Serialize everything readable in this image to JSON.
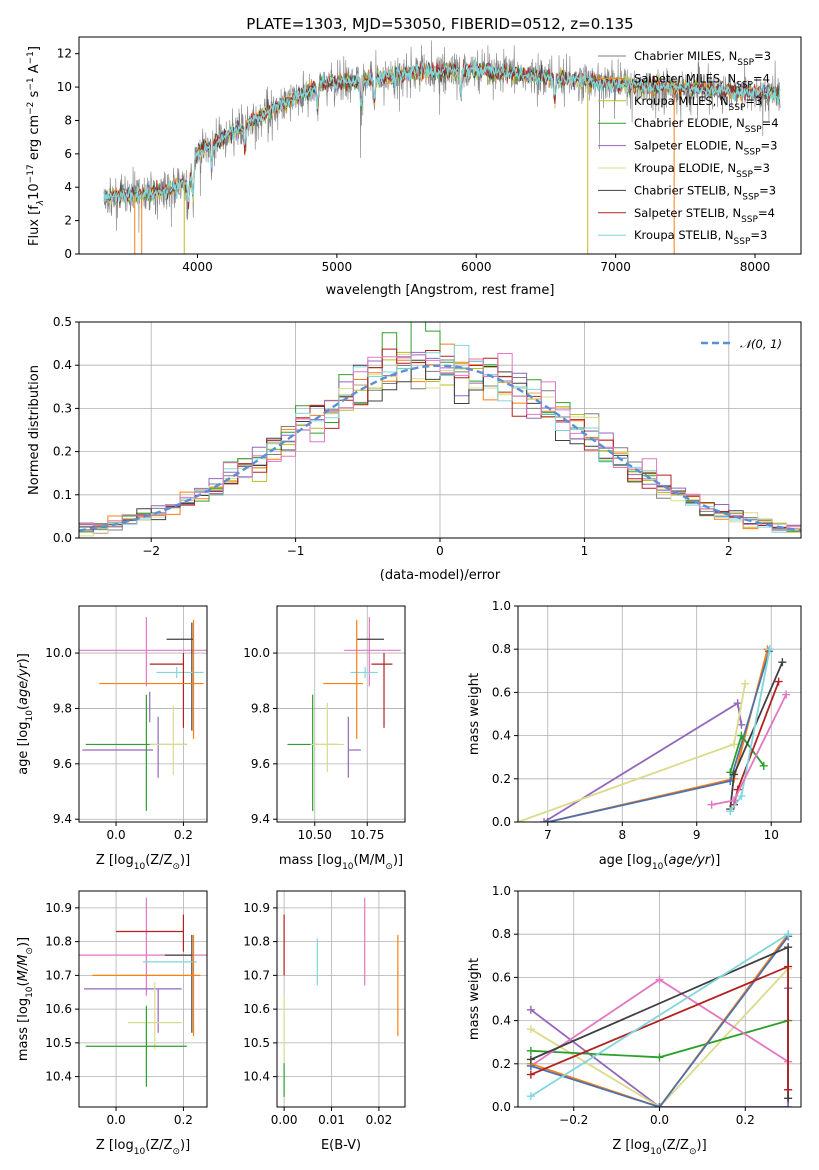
{
  "colors": {
    "chabrier_miles": "#7f7f7f",
    "salpeter_miles": "#ff7f0e",
    "kroupa_miles": "#bcbd22",
    "chabrier_elodie": "#2ca02c",
    "salpeter_elodie": "#9467bd",
    "kroupa_elodie": "#dbdb8d",
    "chabrier_stelib": "#404040",
    "salpeter_stelib": "#b22222",
    "kroupa_stelib": "#7fd7dc",
    "pink": "#e377c2",
    "blue": "#4c72b0",
    "gauss": "#5b8fd6"
  },
  "chart_data": [
    {
      "id": "spectrum",
      "type": "line",
      "title": "PLATE=1303, MJD=53050, FIBERID=0512, z=0.135",
      "xlabel": "wavelength [Angstrom, rest frame]",
      "ylabel": "Flux [f",
      "ylabel_sub": "λ",
      "ylabel_rest": "10",
      "ylabel_exp": "−17",
      "ylabel_units": " erg cm",
      "ylabel_units_exp": "−2",
      "ylabel_units2": " s",
      "ylabel_units2_exp": "−1",
      "ylabel_units3": " A",
      "ylabel_units3_exp": "−1",
      "ylabel_close": "]",
      "xlim": [
        3150,
        8330
      ],
      "ylim": [
        0,
        13
      ],
      "xticks": [
        4000,
        5000,
        6000,
        7000,
        8000
      ],
      "yticks": [
        0,
        2,
        4,
        6,
        8,
        10,
        12
      ],
      "x_range": [
        3330,
        8180
      ],
      "continuum": [
        [
          3330,
          3.4
        ],
        [
          3650,
          3.6
        ],
        [
          3800,
          3.9
        ],
        [
          3950,
          4.4
        ],
        [
          4000,
          6.1
        ],
        [
          4300,
          7.5
        ],
        [
          4600,
          9.0
        ],
        [
          4900,
          10.2
        ],
        [
          5200,
          10.4
        ],
        [
          5600,
          10.9
        ],
        [
          6000,
          11.0
        ],
        [
          6500,
          10.6
        ],
        [
          7000,
          10.2
        ],
        [
          7500,
          9.9
        ],
        [
          8180,
          9.6
        ]
      ],
      "legend": [
        {
          "name": "Chabrier MILES, N",
          "sub": "SSP",
          "val": "=3"
        },
        {
          "name": "Salpeter MILES, N",
          "sub": "SSP",
          "val": "=4"
        },
        {
          "name": "Kroupa MILES, N",
          "sub": "SSP",
          "val": "=3"
        },
        {
          "name": "Chabrier ELODIE, N",
          "sub": "SSP",
          "val": "=4"
        },
        {
          "name": "Salpeter ELODIE, N",
          "sub": "SSP",
          "val": "=3"
        },
        {
          "name": "Kroupa ELODIE, N",
          "sub": "SSP",
          "val": "=3"
        },
        {
          "name": "Chabrier STELIB, N",
          "sub": "SSP",
          "val": "=3"
        },
        {
          "name": "Salpeter STELIB, N",
          "sub": "SSP",
          "val": "=4"
        },
        {
          "name": "Kroupa STELIB, N",
          "sub": "SSP",
          "val": "=3"
        }
      ],
      "legend_placement": "upper-right"
    },
    {
      "id": "residuals",
      "type": "histogram",
      "xlabel": "(data-model)/error",
      "ylabel": "Normed distribution",
      "xlim": [
        -2.5,
        2.5
      ],
      "ylim": [
        0,
        0.5
      ],
      "xticks": [
        -2,
        -1,
        0,
        1,
        2
      ],
      "xtick_labels": [
        "−2",
        "−1",
        "0",
        "1",
        "2"
      ],
      "yticks": [
        0.0,
        0.1,
        0.2,
        0.3,
        0.4,
        0.5
      ],
      "bin_width": 0.1,
      "grid": true,
      "legend": [
        {
          "name": "𝒩(0, 1)"
        }
      ],
      "legend_placement": "upper-right"
    },
    {
      "id": "age-vs-Z",
      "type": "errorbar",
      "xlabel": "Z [log",
      "xlabel_sub": "10",
      "xlabel_rest": "(Z/Z",
      "xlabel_sub2": "⊙",
      "xlabel_close": ")]",
      "ylabel": "age  [log",
      "ylabel_sub": "10",
      "ylabel_rest": "(age/yr)]",
      "xlim": [
        -0.11,
        0.27
      ],
      "ylim": [
        9.39,
        10.17
      ],
      "xticks": [
        0.0,
        0.2
      ],
      "yticks": [
        9.4,
        9.6,
        9.8,
        10.0
      ],
      "grid": true,
      "points": [
        {
          "series": "pink",
          "x": 0.09,
          "xerr": [
            0.2,
            0.21
          ],
          "y": 10.01,
          "yerr": [
            0.13,
            0.12
          ]
        },
        {
          "series": "chabrier_stelib",
          "x": 0.23,
          "xerr": [
            0.08,
            0.0
          ],
          "y": 10.05,
          "yerr": [
            0.0,
            0.0
          ]
        },
        {
          "series": "chabrier_stelib",
          "x": 0.225,
          "xerr": [
            0.0,
            0.0
          ],
          "y": 9.93,
          "yerr": [
            0.21,
            0.18
          ]
        },
        {
          "series": "kroupa_stelib",
          "x": 0.18,
          "xerr": [
            0.06,
            0.08
          ],
          "y": 9.93,
          "yerr": [
            0.02,
            0.02
          ]
        },
        {
          "series": "salpeter_stelib",
          "x": 0.2,
          "xerr": [
            0.1,
            0.0
          ],
          "y": 9.96,
          "yerr": [
            0.23,
            0.04
          ]
        },
        {
          "series": "salpeter_miles",
          "x": 0.23,
          "xerr": [
            0.28,
            0.03
          ],
          "y": 9.89,
          "yerr": [
            0.2,
            0.23
          ]
        },
        {
          "series": "salpeter_elodie",
          "x": 0.1,
          "xerr": [
            0.2,
            0.01
          ],
          "y": 9.65,
          "yerr": [
            0.0,
            0.0
          ]
        },
        {
          "series": "salpeter_elodie",
          "x": 0.1,
          "xerr": [
            0.0,
            0.0
          ],
          "y": 9.75,
          "yerr": [
            0.0,
            0.11
          ]
        },
        {
          "series": "salpeter_elodie",
          "x": 0.125,
          "xerr": [
            0.0,
            0.0
          ],
          "y": 9.65,
          "yerr": [
            0.1,
            0.12
          ]
        },
        {
          "series": "chabrier_elodie",
          "x": 0.09,
          "xerr": [
            0.18,
            0.12
          ],
          "y": 9.67,
          "yerr": [
            0.24,
            0.18
          ]
        },
        {
          "series": "kroupa_elodie",
          "x": 0.17,
          "xerr": [
            0.0,
            0.0
          ],
          "y": 9.66,
          "yerr": [
            0.1,
            0.15
          ]
        },
        {
          "series": "kroupa_elodie",
          "x": 0.17,
          "xerr": [
            0.07,
            0.04
          ],
          "y": 9.67,
          "yerr": [
            0.0,
            0.0
          ]
        }
      ]
    },
    {
      "id": "age-vs-mass",
      "type": "errorbar",
      "xlabel": "mass [log",
      "xlabel_sub": "10",
      "xlabel_rest": "(M/M",
      "xlabel_sub2": "⊙",
      "xlabel_close": ")]",
      "xlim": [
        10.32,
        10.93
      ],
      "ylim": [
        9.39,
        10.17
      ],
      "xticks": [
        10.5,
        10.75
      ],
      "xtick_labels": [
        "10.50",
        "10.75"
      ],
      "yticks": [
        9.4,
        9.6,
        9.8,
        10.0
      ],
      "grid": true,
      "points": [
        {
          "series": "pink",
          "x": 10.76,
          "xerr": [
            0.12,
            0.15
          ],
          "y": 10.01,
          "yerr": [
            0.13,
            0.12
          ]
        },
        {
          "series": "chabrier_stelib",
          "x": 10.76,
          "xerr": [
            0.06,
            0.07
          ],
          "y": 10.05,
          "yerr": [
            0.0,
            0.0
          ]
        },
        {
          "series": "kroupa_stelib",
          "x": 10.74,
          "xerr": [
            0.07,
            0.06
          ],
          "y": 9.93,
          "yerr": [
            0.02,
            0.02
          ]
        },
        {
          "series": "salpeter_stelib",
          "x": 10.83,
          "xerr": [
            0.06,
            0.04
          ],
          "y": 9.96,
          "yerr": [
            0.23,
            0.04
          ]
        },
        {
          "series": "salpeter_miles",
          "x": 10.7,
          "xerr": [
            0.16,
            0.03
          ],
          "y": 9.89,
          "yerr": [
            0.2,
            0.23
          ]
        },
        {
          "series": "salpeter_elodie",
          "x": 10.66,
          "xerr": [
            0.0,
            0.06
          ],
          "y": 9.65,
          "yerr": [
            0.1,
            0.12
          ]
        },
        {
          "series": "chabrier_elodie",
          "x": 10.49,
          "xerr": [
            0.12,
            0.12
          ],
          "y": 9.67,
          "yerr": [
            0.24,
            0.18
          ]
        },
        {
          "series": "kroupa_elodie",
          "x": 10.56,
          "xerr": [
            0.08,
            0.08
          ],
          "y": 9.67,
          "yerr": [
            0.1,
            0.15
          ]
        }
      ]
    },
    {
      "id": "mass-weight-vs-age",
      "type": "line",
      "xlabel": "age  [log",
      "xlabel_sub": "10",
      "xlabel_rest": "(age/yr)]",
      "ylabel": "mass weight",
      "xlim": [
        6.6,
        10.4
      ],
      "ylim": [
        0,
        1.0
      ],
      "xticks": [
        7,
        8,
        9,
        10
      ],
      "yticks": [
        0.0,
        0.2,
        0.4,
        0.6,
        0.8,
        1.0
      ],
      "grid": true,
      "series": [
        {
          "name": "salpeter_elodie",
          "x": [
            6.95,
            9.55,
            9.6
          ],
          "y": [
            0.0,
            0.55,
            0.45
          ]
        },
        {
          "name": "kroupa_elodie",
          "x": [
            6.6,
            9.5,
            9.65
          ],
          "y": [
            0.0,
            0.36,
            0.64
          ]
        },
        {
          "name": "salpeter_miles",
          "x": [
            7.0,
            9.5,
            9.95
          ],
          "y": [
            0.0,
            0.2,
            0.8
          ]
        },
        {
          "name": "blue",
          "x": [
            7.0,
            9.45,
            9.97
          ],
          "y": [
            0.0,
            0.19,
            0.79
          ]
        },
        {
          "name": "chabrier_elodie",
          "x": [
            9.45,
            9.6,
            9.9
          ],
          "y": [
            0.23,
            0.4,
            0.26
          ]
        },
        {
          "name": "chabrier_stelib",
          "x": [
            9.45,
            9.5,
            10.15
          ],
          "y": [
            0.06,
            0.22,
            0.74
          ]
        },
        {
          "name": "salpeter_stelib",
          "x": [
            9.5,
            9.55,
            10.1
          ],
          "y": [
            0.08,
            0.15,
            0.65
          ]
        },
        {
          "name": "kroupa_stelib",
          "x": [
            9.45,
            9.6,
            9.98
          ],
          "y": [
            0.05,
            0.12,
            0.8
          ]
        },
        {
          "name": "pink",
          "x": [
            9.2,
            9.5,
            10.2
          ],
          "y": [
            0.08,
            0.1,
            0.59
          ]
        }
      ]
    },
    {
      "id": "mass-vs-Z",
      "type": "errorbar",
      "xlabel": "Z [log",
      "xlabel_sub": "10",
      "xlabel_rest": "(Z/Z",
      "xlabel_sub2": "⊙",
      "xlabel_close": ")]",
      "ylabel": "mass [log",
      "ylabel_sub": "10",
      "ylabel_rest": "(M/M",
      "ylabel_sub2": "⊙",
      "ylabel_close": ")]",
      "xlim": [
        -0.11,
        0.27
      ],
      "ylim": [
        10.31,
        10.95
      ],
      "xticks": [
        0.0,
        0.2
      ],
      "yticks": [
        10.4,
        10.5,
        10.6,
        10.7,
        10.8,
        10.9
      ],
      "grid": true,
      "points": [
        {
          "series": "pink",
          "x": 0.09,
          "xerr": [
            0.2,
            0.21
          ],
          "y": 10.76,
          "yerr": [
            0.12,
            0.17
          ]
        },
        {
          "series": "salpeter_stelib",
          "x": 0.2,
          "xerr": [
            0.2,
            0.0
          ],
          "y": 10.83,
          "yerr": [
            0.06,
            0.05
          ]
        },
        {
          "series": "chabrier_stelib",
          "x": 0.225,
          "xerr": [
            0.08,
            0.0
          ],
          "y": 10.76,
          "yerr": [
            0.23,
            0.06
          ]
        },
        {
          "series": "kroupa_stelib",
          "x": 0.16,
          "xerr": [
            0.08,
            0.08
          ],
          "y": 10.74,
          "yerr": [
            0.0,
            0.0
          ]
        },
        {
          "series": "salpeter_miles",
          "x": 0.23,
          "xerr": [
            0.3,
            0.02
          ],
          "y": 10.7,
          "yerr": [
            0.18,
            0.12
          ]
        },
        {
          "series": "salpeter_elodie",
          "x": 0.125,
          "xerr": [
            0.22,
            0.07
          ],
          "y": 10.66,
          "yerr": [
            0.13,
            0.0
          ]
        },
        {
          "series": "kroupa_elodie",
          "x": 0.115,
          "xerr": [
            0.08,
            0.08
          ],
          "y": 10.56,
          "yerr": [
            0.08,
            0.12
          ]
        },
        {
          "series": "chabrier_elodie",
          "x": 0.09,
          "xerr": [
            0.18,
            0.12
          ],
          "y": 10.49,
          "yerr": [
            0.12,
            0.12
          ]
        }
      ]
    },
    {
      "id": "mass-vs-ebv",
      "type": "errorbar",
      "xlabel": "E(B-V)",
      "xlim": [
        -0.0015,
        0.0255
      ],
      "ylim": [
        10.31,
        10.95
      ],
      "xticks": [
        0.0,
        0.01,
        0.02
      ],
      "xtick_labels": [
        "0.00",
        "0.01",
        "0.02"
      ],
      "yticks": [
        10.4,
        10.5,
        10.6,
        10.7,
        10.8,
        10.9
      ],
      "grid": true,
      "points": [
        {
          "series": "salpeter_stelib",
          "x": 0.0,
          "y": 10.83,
          "yerr": [
            0.13,
            0.05
          ]
        },
        {
          "series": "kroupa_elodie",
          "x": 0.0,
          "y": 10.56,
          "yerr": [
            0.11,
            0.08
          ]
        },
        {
          "series": "chabrier_elodie",
          "x": 0.0,
          "y": 10.39,
          "yerr": [
            0.05,
            0.05
          ]
        },
        {
          "series": "kroupa_stelib",
          "x": 0.007,
          "y": 10.74,
          "yerr": [
            0.07,
            0.07
          ]
        },
        {
          "series": "pink",
          "x": 0.017,
          "y": 10.81,
          "yerr": [
            0.14,
            0.12
          ]
        },
        {
          "series": "salpeter_miles",
          "x": 0.024,
          "y": 10.67,
          "yerr": [
            0.15,
            0.15
          ]
        }
      ]
    },
    {
      "id": "mass-weight-vs-Z",
      "type": "line",
      "xlabel": "Z [log",
      "xlabel_sub": "10",
      "xlabel_rest": "(Z/Z",
      "xlabel_sub2": "⊙",
      "xlabel_close": ")]",
      "ylabel": "mass weight",
      "xlim": [
        -0.33,
        0.33
      ],
      "ylim": [
        0,
        1.0
      ],
      "xticks": [
        -0.2,
        0.0,
        0.2
      ],
      "xtick_labels": [
        "−0.2",
        "0.0",
        "0.2"
      ],
      "yticks": [
        0.0,
        0.2,
        0.4,
        0.6,
        0.8,
        1.0
      ],
      "grid": true,
      "series": [
        {
          "name": "salpeter_elodie",
          "x": [
            -0.3,
            0.0,
            0.3,
            0.3
          ],
          "y": [
            0.45,
            0.0,
            0.0,
            0.55
          ]
        },
        {
          "name": "kroupa_elodie",
          "x": [
            -0.3,
            0.0,
            0.3
          ],
          "y": [
            0.36,
            0.0,
            0.64
          ]
        },
        {
          "name": "chabrier_elodie",
          "x": [
            -0.3,
            0.0,
            0.3
          ],
          "y": [
            0.26,
            0.23,
            0.4
          ]
        },
        {
          "name": "pink",
          "x": [
            -0.3,
            0.0,
            0.3,
            0.3
          ],
          "y": [
            0.19,
            0.59,
            0.21,
            0.08
          ]
        },
        {
          "name": "salpeter_miles",
          "x": [
            -0.3,
            0.0,
            0.3
          ],
          "y": [
            0.2,
            0.0,
            0.8
          ]
        },
        {
          "name": "blue",
          "x": [
            -0.3,
            0.0,
            0.3
          ],
          "y": [
            0.19,
            0.0,
            0.79
          ]
        },
        {
          "name": "chabrier_stelib",
          "x": [
            -0.3,
            0.3,
            0.3
          ],
          "y": [
            0.22,
            0.74,
            0.04
          ]
        },
        {
          "name": "salpeter_stelib",
          "x": [
            -0.3,
            0.3,
            0.3
          ],
          "y": [
            0.15,
            0.65,
            0.08
          ]
        },
        {
          "name": "kroupa_stelib",
          "x": [
            -0.3,
            0.3
          ],
          "y": [
            0.05,
            0.8
          ]
        }
      ]
    }
  ]
}
